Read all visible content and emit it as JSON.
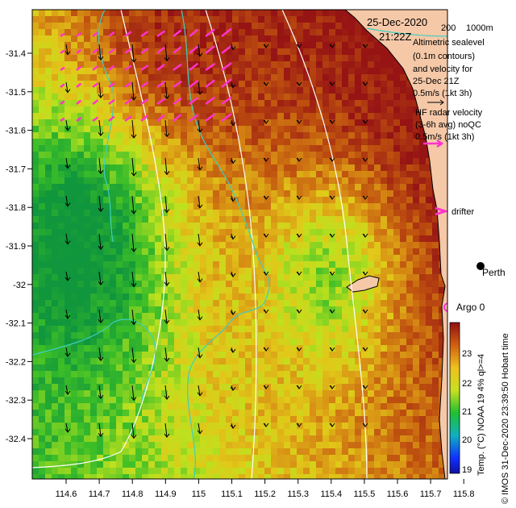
{
  "header": {
    "date": "25-Dec-2020",
    "time": "21:22Z",
    "depth_labels": [
      "200",
      "1000m"
    ]
  },
  "legend": {
    "altimetric_lines": [
      "Altimetric sealevel",
      "(0.1m contours)",
      "and velocity for",
      "25-Dec 21Z",
      "0.5m/s (1kt 3h)"
    ],
    "hf_lines": [
      "HF radar velocity",
      "(3-6h avg) noQC",
      "0.5m/s (1kt 3h)"
    ],
    "drifter_label": "drifter",
    "argo_label": "Argo 0",
    "city_label": "Perth"
  },
  "colorbar": {
    "ticks": [
      "23",
      "22",
      "21",
      "20",
      "19"
    ],
    "caption": "Temp. (°C) NOAA 19 4% ql>=4"
  },
  "credit": "© IMOS 31-Dec-2020 23:39:50 Hobart time",
  "axes": {
    "x_ticks": [
      "114.6",
      "114.7",
      "114.8",
      "114.9",
      "115",
      "115.1",
      "115.2",
      "115.3",
      "115.4",
      "115.5",
      "115.6",
      "115.7",
      "115.8"
    ],
    "y_ticks": [
      "-31.4",
      "-31.5",
      "-31.6",
      "-31.7",
      "-31.8",
      "-31.9",
      "-32",
      "-32.1",
      "-32.2",
      "-32.3",
      "-32.4"
    ]
  },
  "colors": {
    "land": "#f5c8a8",
    "contour": "#3ccfc0",
    "hf_arrow": "#ff33cc",
    "alt_arrow": "#000000",
    "sst_high": "#a01010",
    "sst_low": "#10a040"
  }
}
